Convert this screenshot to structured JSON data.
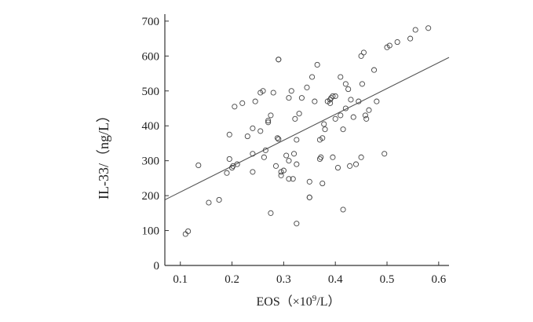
{
  "chart_data": {
    "type": "scatter",
    "xlabel_main": "EOS（×10",
    "xlabel_sup": "9",
    "xlabel_tail": "/L）",
    "ylabel": "IL-33/（ng/L）",
    "xlim": [
      0.07,
      0.62
    ],
    "ylim": [
      0,
      720
    ],
    "x_ticks": [
      0.1,
      0.2,
      0.3,
      0.4,
      0.5,
      0.6
    ],
    "x_tick_labels": [
      "0.1",
      "0.2",
      "0.3",
      "0.4",
      "0.5",
      "0.6"
    ],
    "y_ticks": [
      0,
      100,
      200,
      300,
      400,
      500,
      600,
      700
    ],
    "y_tick_labels": [
      "0",
      "100",
      "200",
      "300",
      "400",
      "500",
      "600",
      "700"
    ],
    "grid": false,
    "legend": "none",
    "point_marker": "open-circle",
    "trend_line": {
      "x": [
        0.07,
        0.62
      ],
      "y": [
        188,
        596
      ]
    },
    "points": [
      {
        "x": 0.11,
        "y": 90
      },
      {
        "x": 0.115,
        "y": 98
      },
      {
        "x": 0.135,
        "y": 287
      },
      {
        "x": 0.155,
        "y": 180
      },
      {
        "x": 0.175,
        "y": 188
      },
      {
        "x": 0.19,
        "y": 265
      },
      {
        "x": 0.195,
        "y": 305
      },
      {
        "x": 0.195,
        "y": 375
      },
      {
        "x": 0.2,
        "y": 280
      },
      {
        "x": 0.202,
        "y": 285
      },
      {
        "x": 0.205,
        "y": 455
      },
      {
        "x": 0.21,
        "y": 290
      },
      {
        "x": 0.22,
        "y": 465
      },
      {
        "x": 0.23,
        "y": 370
      },
      {
        "x": 0.24,
        "y": 320
      },
      {
        "x": 0.24,
        "y": 268
      },
      {
        "x": 0.24,
        "y": 393
      },
      {
        "x": 0.245,
        "y": 470
      },
      {
        "x": 0.255,
        "y": 385
      },
      {
        "x": 0.255,
        "y": 495
      },
      {
        "x": 0.26,
        "y": 500
      },
      {
        "x": 0.262,
        "y": 310
      },
      {
        "x": 0.265,
        "y": 330
      },
      {
        "x": 0.27,
        "y": 410
      },
      {
        "x": 0.27,
        "y": 415
      },
      {
        "x": 0.275,
        "y": 430
      },
      {
        "x": 0.275,
        "y": 150
      },
      {
        "x": 0.28,
        "y": 495
      },
      {
        "x": 0.285,
        "y": 285
      },
      {
        "x": 0.288,
        "y": 365
      },
      {
        "x": 0.29,
        "y": 590
      },
      {
        "x": 0.29,
        "y": 362
      },
      {
        "x": 0.29,
        "y": 590
      },
      {
        "x": 0.295,
        "y": 268
      },
      {
        "x": 0.295,
        "y": 258
      },
      {
        "x": 0.3,
        "y": 272
      },
      {
        "x": 0.305,
        "y": 315
      },
      {
        "x": 0.31,
        "y": 248
      },
      {
        "x": 0.31,
        "y": 300
      },
      {
        "x": 0.31,
        "y": 480
      },
      {
        "x": 0.315,
        "y": 500
      },
      {
        "x": 0.318,
        "y": 248
      },
      {
        "x": 0.32,
        "y": 320
      },
      {
        "x": 0.322,
        "y": 420
      },
      {
        "x": 0.325,
        "y": 360
      },
      {
        "x": 0.325,
        "y": 290
      },
      {
        "x": 0.325,
        "y": 120
      },
      {
        "x": 0.33,
        "y": 435
      },
      {
        "x": 0.335,
        "y": 480
      },
      {
        "x": 0.345,
        "y": 510
      },
      {
        "x": 0.35,
        "y": 240
      },
      {
        "x": 0.35,
        "y": 195
      },
      {
        "x": 0.35,
        "y": 195
      },
      {
        "x": 0.355,
        "y": 540
      },
      {
        "x": 0.36,
        "y": 470
      },
      {
        "x": 0.365,
        "y": 575
      },
      {
        "x": 0.37,
        "y": 360
      },
      {
        "x": 0.37,
        "y": 305
      },
      {
        "x": 0.372,
        "y": 310
      },
      {
        "x": 0.375,
        "y": 235
      },
      {
        "x": 0.375,
        "y": 365
      },
      {
        "x": 0.378,
        "y": 405
      },
      {
        "x": 0.38,
        "y": 390
      },
      {
        "x": 0.385,
        "y": 470
      },
      {
        "x": 0.39,
        "y": 475
      },
      {
        "x": 0.39,
        "y": 465
      },
      {
        "x": 0.392,
        "y": 480
      },
      {
        "x": 0.395,
        "y": 310
      },
      {
        "x": 0.395,
        "y": 485
      },
      {
        "x": 0.4,
        "y": 420
      },
      {
        "x": 0.4,
        "y": 485
      },
      {
        "x": 0.405,
        "y": 280
      },
      {
        "x": 0.41,
        "y": 430
      },
      {
        "x": 0.41,
        "y": 540
      },
      {
        "x": 0.415,
        "y": 390
      },
      {
        "x": 0.415,
        "y": 160
      },
      {
        "x": 0.42,
        "y": 450
      },
      {
        "x": 0.42,
        "y": 520
      },
      {
        "x": 0.425,
        "y": 505
      },
      {
        "x": 0.428,
        "y": 285
      },
      {
        "x": 0.43,
        "y": 475
      },
      {
        "x": 0.435,
        "y": 425
      },
      {
        "x": 0.44,
        "y": 290
      },
      {
        "x": 0.445,
        "y": 470
      },
      {
        "x": 0.45,
        "y": 310
      },
      {
        "x": 0.45,
        "y": 600
      },
      {
        "x": 0.452,
        "y": 520
      },
      {
        "x": 0.455,
        "y": 610
      },
      {
        "x": 0.458,
        "y": 430
      },
      {
        "x": 0.46,
        "y": 420
      },
      {
        "x": 0.465,
        "y": 445
      },
      {
        "x": 0.475,
        "y": 560
      },
      {
        "x": 0.48,
        "y": 470
      },
      {
        "x": 0.495,
        "y": 320
      },
      {
        "x": 0.5,
        "y": 625
      },
      {
        "x": 0.505,
        "y": 630
      },
      {
        "x": 0.52,
        "y": 640
      },
      {
        "x": 0.545,
        "y": 650
      },
      {
        "x": 0.555,
        "y": 675
      },
      {
        "x": 0.58,
        "y": 680
      }
    ]
  }
}
